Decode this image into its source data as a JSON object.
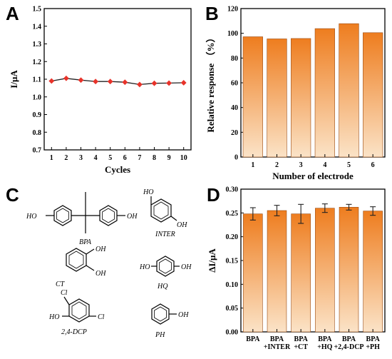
{
  "panels": {
    "a": "A",
    "b": "B",
    "c": "C",
    "d": "D"
  },
  "colors": {
    "line": "#222222",
    "marker": "#e8332a",
    "bar_top": "#ee7d1f",
    "bar_bottom": "#fbe3c7",
    "bar_edge": "#9a4a10",
    "error_bar": "#222222"
  },
  "chart_data": [
    {
      "panel": "A",
      "type": "line",
      "xlabel": "Cycles",
      "ylabel": "I/μA",
      "x": [
        1,
        2,
        3,
        4,
        5,
        6,
        7,
        8,
        9,
        10
      ],
      "values": [
        1.09,
        1.105,
        1.095,
        1.087,
        1.087,
        1.083,
        1.07,
        1.077,
        1.078,
        1.08
      ],
      "xlim": [
        0.5,
        10.5
      ],
      "ylim": [
        0.7,
        1.5
      ],
      "x_ticks": [
        "1",
        "2",
        "3",
        "4",
        "5",
        "6",
        "7",
        "8",
        "9",
        "10"
      ],
      "y_ticks": [
        "0.7",
        "0.8",
        "0.9",
        "1.0",
        "1.1",
        "1.2",
        "1.3",
        "1.4",
        "1.5"
      ],
      "marker": "diamond",
      "grid": false
    },
    {
      "panel": "B",
      "type": "bar",
      "xlabel": "Number of electrode",
      "ylabel": "Relative response （%）",
      "categories": [
        "1",
        "2",
        "3",
        "4",
        "5",
        "6"
      ],
      "values": [
        97.2,
        95.5,
        95.8,
        103.8,
        107.8,
        100.5
      ],
      "ylim": [
        0,
        120
      ],
      "y_ticks": [
        "0",
        "20",
        "40",
        "60",
        "80",
        "100",
        "120"
      ],
      "grid": false
    },
    {
      "panel": "D",
      "type": "bar",
      "xlabel": "",
      "ylabel": "ΔI/μA",
      "categories": [
        [
          "BPA"
        ],
        [
          "BPA",
          "+INTER"
        ],
        [
          "BPA",
          "+CT"
        ],
        [
          "BPA",
          "+HQ"
        ],
        [
          "BPA",
          "+2,4-DCP"
        ],
        [
          "BPA",
          "+PH"
        ]
      ],
      "values": [
        0.248,
        0.255,
        0.248,
        0.26,
        0.262,
        0.254
      ],
      "errors": [
        0.013,
        0.011,
        0.02,
        0.009,
        0.006,
        0.009
      ],
      "ylim": [
        0,
        0.3
      ],
      "y_ticks": [
        "0.00",
        "0.05",
        "0.10",
        "0.15",
        "0.20",
        "0.25",
        "0.30"
      ],
      "grid": false
    }
  ],
  "structures": {
    "bpa": {
      "name": "BPA",
      "left": "HO",
      "right": "OH"
    },
    "inter": {
      "name": "INTER",
      "top": "HO",
      "bottom": "OH"
    },
    "ct": {
      "name": "CT",
      "top": "OH",
      "right": "OH"
    },
    "hq": {
      "name": "HQ",
      "left": "HO",
      "right": "OH"
    },
    "dcp": {
      "name": "2,4-DCP",
      "top": "Cl",
      "left": "HO",
      "right": "Cl"
    },
    "ph": {
      "name": "PH",
      "right": "OH"
    }
  }
}
